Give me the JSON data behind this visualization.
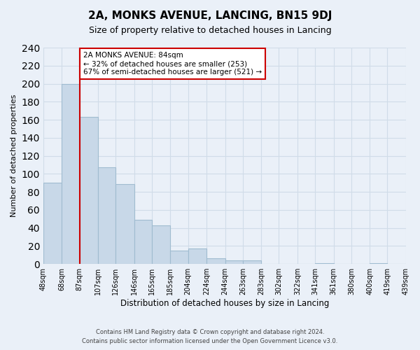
{
  "title": "2A, MONKS AVENUE, LANCING, BN15 9DJ",
  "subtitle": "Size of property relative to detached houses in Lancing",
  "xlabel": "Distribution of detached houses by size in Lancing",
  "ylabel": "Number of detached properties",
  "bar_edges": [
    48,
    68,
    87,
    107,
    126,
    146,
    165,
    185,
    204,
    224,
    244,
    263,
    283,
    302,
    322,
    341,
    361,
    380,
    400,
    419,
    439
  ],
  "bar_heights": [
    90,
    200,
    163,
    107,
    89,
    49,
    43,
    15,
    17,
    6,
    4,
    4,
    0,
    0,
    0,
    1,
    0,
    0,
    1,
    0
  ],
  "bar_color": "#c8d8e8",
  "bar_edge_color": "#a0bcd0",
  "vline_x": 87,
  "vline_color": "#cc0000",
  "annotation_text": "2A MONKS AVENUE: 84sqm\n← 32% of detached houses are smaller (253)\n67% of semi-detached houses are larger (521) →",
  "annotation_box_color": "#ffffff",
  "annotation_box_edge_color": "#cc0000",
  "ylim": [
    0,
    240
  ],
  "yticks": [
    0,
    20,
    40,
    60,
    80,
    100,
    120,
    140,
    160,
    180,
    200,
    220,
    240
  ],
  "tick_labels": [
    "48sqm",
    "68sqm",
    "87sqm",
    "107sqm",
    "126sqm",
    "146sqm",
    "165sqm",
    "185sqm",
    "204sqm",
    "224sqm",
    "244sqm",
    "263sqm",
    "283sqm",
    "302sqm",
    "322sqm",
    "341sqm",
    "361sqm",
    "380sqm",
    "400sqm",
    "419sqm",
    "439sqm"
  ],
  "footer_line1": "Contains HM Land Registry data © Crown copyright and database right 2024.",
  "footer_line2": "Contains public sector information licensed under the Open Government Licence v3.0.",
  "grid_color": "#d0dce8",
  "bg_color": "#eaf0f8"
}
